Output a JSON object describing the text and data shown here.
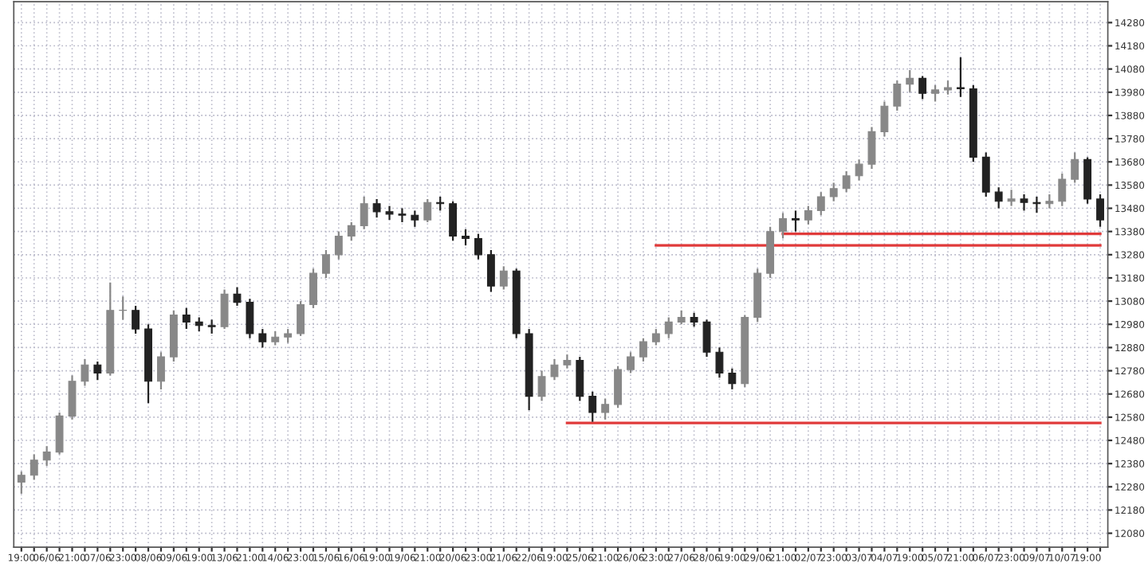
{
  "chart_data": {
    "type": "candlestick",
    "categories": [
      "19:00",
      null,
      "06/06",
      null,
      "21:00",
      null,
      "07/06",
      null,
      "23:00",
      null,
      "08/06",
      null,
      "09/06",
      null,
      "19:00",
      null,
      "13/06",
      null,
      "21:00",
      null,
      "14/06",
      null,
      "23:00",
      null,
      "15/06",
      null,
      "16/06",
      null,
      "19:00",
      null,
      "19/06",
      null,
      "21:00",
      null,
      "20/06",
      null,
      "23:00",
      null,
      "21/06",
      null,
      "22/06",
      null,
      "19:00",
      null,
      "25/06",
      null,
      "21:00",
      null,
      "26/06",
      null,
      "23:00",
      null,
      "27/06",
      null,
      "28/06",
      null,
      "19:00",
      null,
      "29/06",
      null,
      "21:00",
      null,
      "02/07",
      null,
      "23:00",
      null,
      "03/07",
      null,
      "04/07",
      null,
      "19:00",
      null,
      "05/07",
      null,
      "21:00",
      null,
      "06/07",
      null,
      "23:00",
      null,
      "09/07",
      null,
      "10/07",
      null,
      "19:00",
      null
    ],
    "ohlc": [
      [
        12300,
        12345,
        12250,
        12330
      ],
      [
        12330,
        12420,
        12310,
        12395
      ],
      [
        12395,
        12455,
        12370,
        12430
      ],
      [
        12430,
        12600,
        12420,
        12585
      ],
      [
        12585,
        12760,
        12570,
        12735
      ],
      [
        12735,
        12830,
        12715,
        12805
      ],
      [
        12805,
        12820,
        12740,
        12770
      ],
      [
        12770,
        13160,
        12760,
        13040
      ],
      [
        13040,
        13100,
        13000,
        13040
      ],
      [
        13040,
        13060,
        12940,
        12960
      ],
      [
        12960,
        12980,
        12640,
        12735
      ],
      [
        12735,
        12860,
        12700,
        12840
      ],
      [
        12840,
        13040,
        12820,
        13020
      ],
      [
        13020,
        13050,
        12960,
        12990
      ],
      [
        12990,
        13010,
        12950,
        12975
      ],
      [
        12975,
        13000,
        12940,
        12970
      ],
      [
        12970,
        13130,
        12960,
        13110
      ],
      [
        13110,
        13140,
        13060,
        13075
      ],
      [
        13075,
        13090,
        12920,
        12940
      ],
      [
        12940,
        12960,
        12880,
        12905
      ],
      [
        12905,
        12950,
        12890,
        12925
      ],
      [
        12925,
        12960,
        12900,
        12940
      ],
      [
        12940,
        13080,
        12930,
        13065
      ],
      [
        13065,
        13220,
        13050,
        13200
      ],
      [
        13200,
        13300,
        13180,
        13280
      ],
      [
        13280,
        13380,
        13260,
        13360
      ],
      [
        13360,
        13420,
        13340,
        13405
      ],
      [
        13405,
        13530,
        13390,
        13500
      ],
      [
        13500,
        13520,
        13440,
        13465
      ],
      [
        13465,
        13490,
        13430,
        13455
      ],
      [
        13455,
        13480,
        13420,
        13450
      ],
      [
        13450,
        13470,
        13400,
        13430
      ],
      [
        13430,
        13520,
        13420,
        13505
      ],
      [
        13505,
        13530,
        13470,
        13500
      ],
      [
        13500,
        13510,
        13340,
        13360
      ],
      [
        13360,
        13390,
        13320,
        13350
      ],
      [
        13350,
        13370,
        13260,
        13280
      ],
      [
        13280,
        13300,
        13120,
        13145
      ],
      [
        13145,
        13230,
        13130,
        13210
      ],
      [
        13210,
        13220,
        12920,
        12940
      ],
      [
        12940,
        12960,
        12610,
        12670
      ],
      [
        12670,
        12780,
        12650,
        12755
      ],
      [
        12755,
        12830,
        12740,
        12805
      ],
      [
        12805,
        12850,
        12790,
        12825
      ],
      [
        12825,
        12840,
        12650,
        12670
      ],
      [
        12670,
        12690,
        12560,
        12600
      ],
      [
        12600,
        12660,
        12570,
        12635
      ],
      [
        12635,
        12800,
        12620,
        12785
      ],
      [
        12785,
        12860,
        12770,
        12840
      ],
      [
        12840,
        12920,
        12820,
        12905
      ],
      [
        12905,
        12960,
        12890,
        12940
      ],
      [
        12940,
        13010,
        12920,
        12990
      ],
      [
        12990,
        13040,
        12980,
        13010
      ],
      [
        13010,
        13030,
        12970,
        12990
      ],
      [
        12990,
        13000,
        12840,
        12860
      ],
      [
        12860,
        12880,
        12750,
        12770
      ],
      [
        12770,
        12790,
        12700,
        12725
      ],
      [
        12725,
        13020,
        12710,
        13010
      ],
      [
        13010,
        13220,
        12990,
        13200
      ],
      [
        13200,
        13400,
        13180,
        13380
      ],
      [
        13380,
        13460,
        13350,
        13435
      ],
      [
        13435,
        13470,
        13380,
        13430
      ],
      [
        13430,
        13490,
        13410,
        13470
      ],
      [
        13470,
        13550,
        13450,
        13530
      ],
      [
        13530,
        13590,
        13510,
        13565
      ],
      [
        13565,
        13640,
        13550,
        13620
      ],
      [
        13620,
        13690,
        13600,
        13670
      ],
      [
        13670,
        13830,
        13650,
        13810
      ],
      [
        13810,
        13940,
        13790,
        13920
      ],
      [
        13920,
        14030,
        13900,
        14015
      ],
      [
        14015,
        14075,
        13980,
        14040
      ],
      [
        14040,
        14050,
        13950,
        13975
      ],
      [
        13975,
        14010,
        13940,
        13990
      ],
      [
        13990,
        14030,
        13970,
        14000
      ],
      [
        14000,
        14130,
        13960,
        13995
      ],
      [
        13995,
        14010,
        13680,
        13700
      ],
      [
        13700,
        13720,
        13530,
        13550
      ],
      [
        13550,
        13570,
        13480,
        13510
      ],
      [
        13510,
        13560,
        13490,
        13520
      ],
      [
        13520,
        13540,
        13470,
        13505
      ],
      [
        13505,
        13530,
        13460,
        13500
      ],
      [
        13500,
        13540,
        13480,
        13510
      ],
      [
        13510,
        13630,
        13490,
        13605
      ],
      [
        13605,
        13720,
        13590,
        13690
      ],
      [
        13690,
        13700,
        13500,
        13520
      ],
      [
        13520,
        13540,
        13400,
        13430
      ]
    ],
    "series": [
      {
        "type": "line",
        "color": "#e03a3a",
        "values": [
          null,
          null,
          null,
          null,
          null,
          null,
          null,
          null,
          null,
          null,
          null,
          null,
          null,
          null,
          null,
          null,
          null,
          null,
          null,
          null,
          null,
          null,
          null,
          null,
          null,
          null,
          null,
          null,
          null,
          null,
          null,
          null,
          null,
          null,
          null,
          null,
          null,
          null,
          null,
          null,
          null,
          null,
          null,
          null,
          null,
          null,
          null,
          null,
          null,
          null,
          null,
          null,
          null,
          null,
          null,
          null,
          null,
          null,
          null,
          null,
          13370,
          13370,
          13370,
          13370,
          13370,
          13370,
          13370,
          13370,
          13370,
          13370,
          13370,
          13370,
          13370,
          13370,
          13370,
          13370,
          13370,
          13370,
          13370,
          13370,
          13370,
          13370,
          13370,
          13370,
          13370,
          13370
        ]
      },
      {
        "type": "line",
        "color": "#e03a3a",
        "values": [
          null,
          null,
          null,
          null,
          null,
          null,
          null,
          null,
          null,
          null,
          null,
          null,
          null,
          null,
          null,
          null,
          null,
          null,
          null,
          null,
          null,
          null,
          null,
          null,
          null,
          null,
          null,
          null,
          null,
          null,
          null,
          null,
          null,
          null,
          null,
          null,
          null,
          null,
          null,
          null,
          null,
          null,
          null,
          null,
          null,
          null,
          null,
          null,
          null,
          null,
          13320,
          13320,
          13320,
          13320,
          13320,
          13320,
          13320,
          13320,
          13320,
          13320,
          13320,
          13320,
          13320,
          13320,
          13320,
          13320,
          13320,
          13320,
          13320,
          13320,
          13320,
          13320,
          13320,
          13320,
          13320,
          13320,
          13320,
          13320,
          13320,
          13320,
          13320,
          13320,
          13320,
          13320,
          13320,
          13320
        ]
      },
      {
        "type": "line",
        "color": "#e03a3a",
        "values": [
          null,
          null,
          null,
          null,
          null,
          null,
          null,
          null,
          null,
          null,
          null,
          null,
          null,
          null,
          null,
          null,
          null,
          null,
          null,
          null,
          null,
          null,
          null,
          null,
          null,
          null,
          null,
          null,
          null,
          null,
          null,
          null,
          null,
          null,
          null,
          null,
          null,
          null,
          null,
          null,
          null,
          null,
          null,
          12555,
          12555,
          12555,
          12555,
          12555,
          12555,
          12555,
          12555,
          12555,
          12555,
          12555,
          12555,
          12555,
          12555,
          12555,
          12555,
          12555,
          12555,
          12555,
          12555,
          12555,
          12555,
          12555,
          12555,
          12555,
          12555,
          12555,
          12555,
          12555,
          12555,
          12555,
          12555,
          12555,
          12555,
          12555,
          12555,
          12555,
          12555,
          12555,
          12555,
          12555,
          12555,
          12555
        ]
      }
    ],
    "ylim": [
      12020,
      14370
    ],
    "yticks": [
      12080,
      12180,
      12280,
      12380,
      12480,
      12580,
      12680,
      12780,
      12880,
      12980,
      13080,
      13180,
      13280,
      13380,
      13480,
      13580,
      13680,
      13780,
      13880,
      13980,
      14080,
      14180,
      14280
    ],
    "grid": true
  }
}
